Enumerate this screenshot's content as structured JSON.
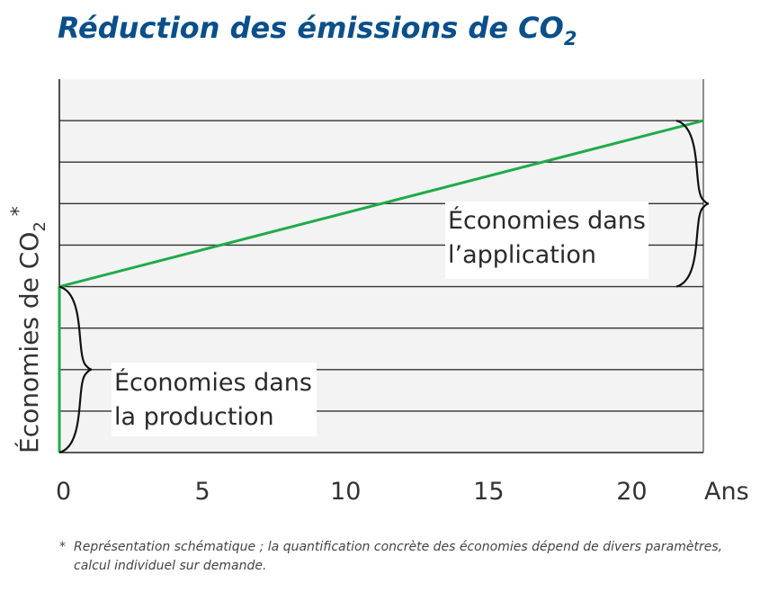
{
  "colors": {
    "title": "#0a4f8a",
    "line": "#1faa4a",
    "plot_bg": "#f2f3f2",
    "grid": "#333333",
    "axis": "#222222"
  },
  "chart_data": {
    "type": "line",
    "title": "Réduction des émissions de CO",
    "title_subscript": "2",
    "xlabel": "Ans",
    "ylabel": "Économies de CO",
    "ylabel_subscript": "2",
    "ylabel_marker": "*",
    "xlim": [
      0,
      22.5
    ],
    "ylim": [
      0,
      9
    ],
    "x_ticks": [
      0,
      5,
      10,
      15,
      20
    ],
    "x_tick_labels": [
      "0",
      "5",
      "10",
      "15",
      "20"
    ],
    "y_gridlines": [
      1,
      2,
      3,
      4,
      5,
      6,
      7,
      8
    ],
    "grid": true,
    "series": [
      {
        "name": "Économies",
        "x": [
          0,
          0,
          22.5
        ],
        "y": [
          0,
          4,
          8
        ]
      }
    ],
    "annotations": {
      "production": {
        "line1": "Économies dans",
        "line2": "la production",
        "bracket_y": [
          0,
          4
        ],
        "bracket_x": 0
      },
      "application": {
        "line1": "Économies dans",
        "line2": "l’application",
        "bracket_y": [
          4,
          8
        ],
        "bracket_x": 22.5
      }
    }
  },
  "footnote": {
    "marker": "*",
    "text": "Représentation schématique ; la quantification concrète des économies dépend de divers paramètres, calcul individuel sur demande."
  }
}
